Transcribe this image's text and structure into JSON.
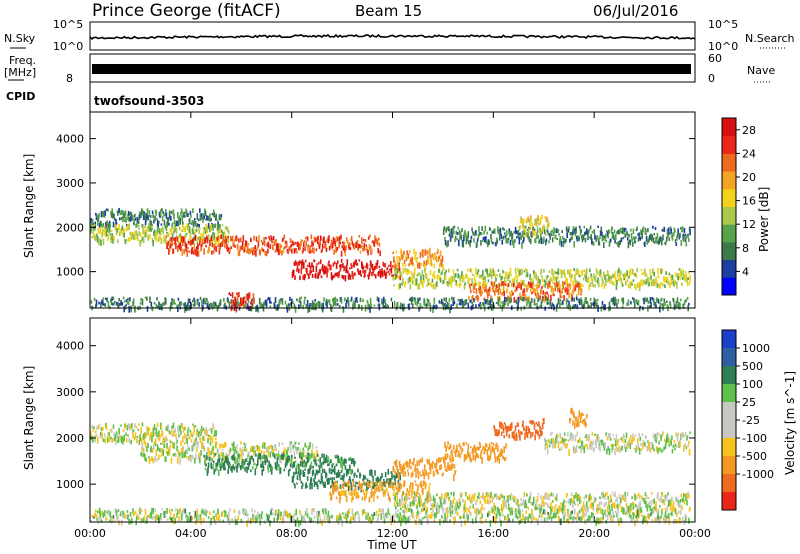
{
  "header": {
    "station": "Prince George (fitACF)",
    "beam": "Beam 15",
    "date": "06/Jul/2016"
  },
  "noise_panel": {
    "left_label": "N.Sky",
    "right_label": "N.Search",
    "left_ticks": [
      "10^5",
      "10^0"
    ],
    "right_ticks": [
      "10^5",
      "10^0"
    ]
  },
  "freq_panel": {
    "label_line1": "Freq.",
    "label_line2": "[MHz]",
    "left_tick": "8",
    "right_label": "Nave",
    "right_ticks": [
      "60",
      "0"
    ]
  },
  "cpid": {
    "label": "CPID",
    "program": "twofsound",
    "id": "-3503"
  },
  "x_axis": {
    "title": "Time UT",
    "ticks": [
      "00:00",
      "04:00",
      "08:00",
      "12:00",
      "16:00",
      "20:00",
      "00:00"
    ]
  },
  "colors": {
    "power_scale": [
      "#0000ff",
      "#1c3e9e",
      "#3c7a4c",
      "#56a34a",
      "#a9c94c",
      "#f2d21a",
      "#f3a423",
      "#ee6b1e",
      "#e9271a",
      "#d80f0f"
    ],
    "velocity_scale": [
      "#1b3fc9",
      "#2f5fa0",
      "#2f7d55",
      "#5ec04b",
      "#c8c8c3",
      "#c8c8c3",
      "#f7c21c",
      "#f39a25",
      "#ee6a1e",
      "#e8271a"
    ]
  },
  "chart_data": [
    {
      "type": "heatmap",
      "title": "",
      "xlabel": "",
      "ylabel": "Slant Range [km]",
      "x_ticks": [
        "00:00",
        "04:00",
        "08:00",
        "12:00",
        "16:00",
        "20:00",
        "00:00"
      ],
      "y_ticks": [
        "4000",
        "3000",
        "2000",
        "1000"
      ],
      "ylim": [
        180,
        4600
      ],
      "colorbar": {
        "label": "Power [dB]",
        "ticks": [
          "28",
          "24",
          "20",
          "16",
          "12",
          "8",
          "4"
        ],
        "range": [
          0,
          30
        ]
      },
      "bands": [
        {
          "range_km": 2250,
          "time_h": [
            0.0,
            5.2
          ],
          "power_db": 8
        },
        {
          "range_km": 1900,
          "time_h": [
            0.0,
            5.5
          ],
          "power_db": 14
        },
        {
          "range_km": 1650,
          "time_h": [
            3.0,
            11.5
          ],
          "power_db": 24
        },
        {
          "range_km": 1100,
          "time_h": [
            8.0,
            12.3
          ],
          "power_db": 28
        },
        {
          "range_km": 1350,
          "time_h": [
            12.0,
            14.0
          ],
          "power_db": 20
        },
        {
          "range_km": 900,
          "time_h": [
            12.0,
            23.8
          ],
          "power_db": 14
        },
        {
          "range_km": 600,
          "time_h": [
            15.0,
            19.5
          ],
          "power_db": 22
        },
        {
          "range_km": 1850,
          "time_h": [
            14.0,
            23.8
          ],
          "power_db": 8
        },
        {
          "range_km": 2100,
          "time_h": [
            17.0,
            18.2
          ],
          "power_db": 16
        },
        {
          "range_km": 250,
          "time_h": [
            0.0,
            23.8
          ],
          "power_db": 8
        },
        {
          "range_km": 350,
          "time_h": [
            5.5,
            6.5
          ],
          "power_db": 26
        }
      ]
    },
    {
      "type": "heatmap",
      "title": "",
      "xlabel": "Time UT",
      "ylabel": "Slant Range [km]",
      "x_ticks": [
        "00:00",
        "04:00",
        "08:00",
        "12:00",
        "16:00",
        "20:00",
        "00:00"
      ],
      "y_ticks": [
        "4000",
        "3000",
        "2000",
        "1000"
      ],
      "ylim": [
        180,
        4600
      ],
      "colorbar": {
        "label": "Velocity [m s^-1]",
        "ticks": [
          "1000",
          "500",
          "100",
          "25",
          "-25",
          "-100",
          "-500",
          "-1000"
        ],
        "range": [
          -1000,
          1000
        ]
      },
      "bands": [
        {
          "range_km": 2150,
          "time_h": [
            0.0,
            5.0
          ],
          "velocity": 0
        },
        {
          "range_km": 1750,
          "time_h": [
            2.0,
            9.0
          ],
          "velocity": 0
        },
        {
          "range_km": 1500,
          "time_h": [
            4.5,
            10.5
          ],
          "velocity": 150
        },
        {
          "range_km": 1150,
          "time_h": [
            8.0,
            12.3
          ],
          "velocity": 200
        },
        {
          "range_km": 1400,
          "time_h": [
            12.0,
            14.5
          ],
          "velocity": -200
        },
        {
          "range_km": 1750,
          "time_h": [
            14.0,
            16.5
          ],
          "velocity": -300
        },
        {
          "range_km": 2250,
          "time_h": [
            16.0,
            18.0
          ],
          "velocity": -600
        },
        {
          "range_km": 2500,
          "time_h": [
            19.0,
            19.7
          ],
          "velocity": -400
        },
        {
          "range_km": 900,
          "time_h": [
            9.5,
            13.5
          ],
          "velocity": -150
        },
        {
          "range_km": 650,
          "time_h": [
            12.0,
            23.8
          ],
          "velocity": 0
        },
        {
          "range_km": 1950,
          "time_h": [
            18.0,
            23.8
          ],
          "velocity": 0
        },
        {
          "range_km": 300,
          "time_h": [
            0.0,
            23.8
          ],
          "velocity": 20
        }
      ]
    }
  ]
}
